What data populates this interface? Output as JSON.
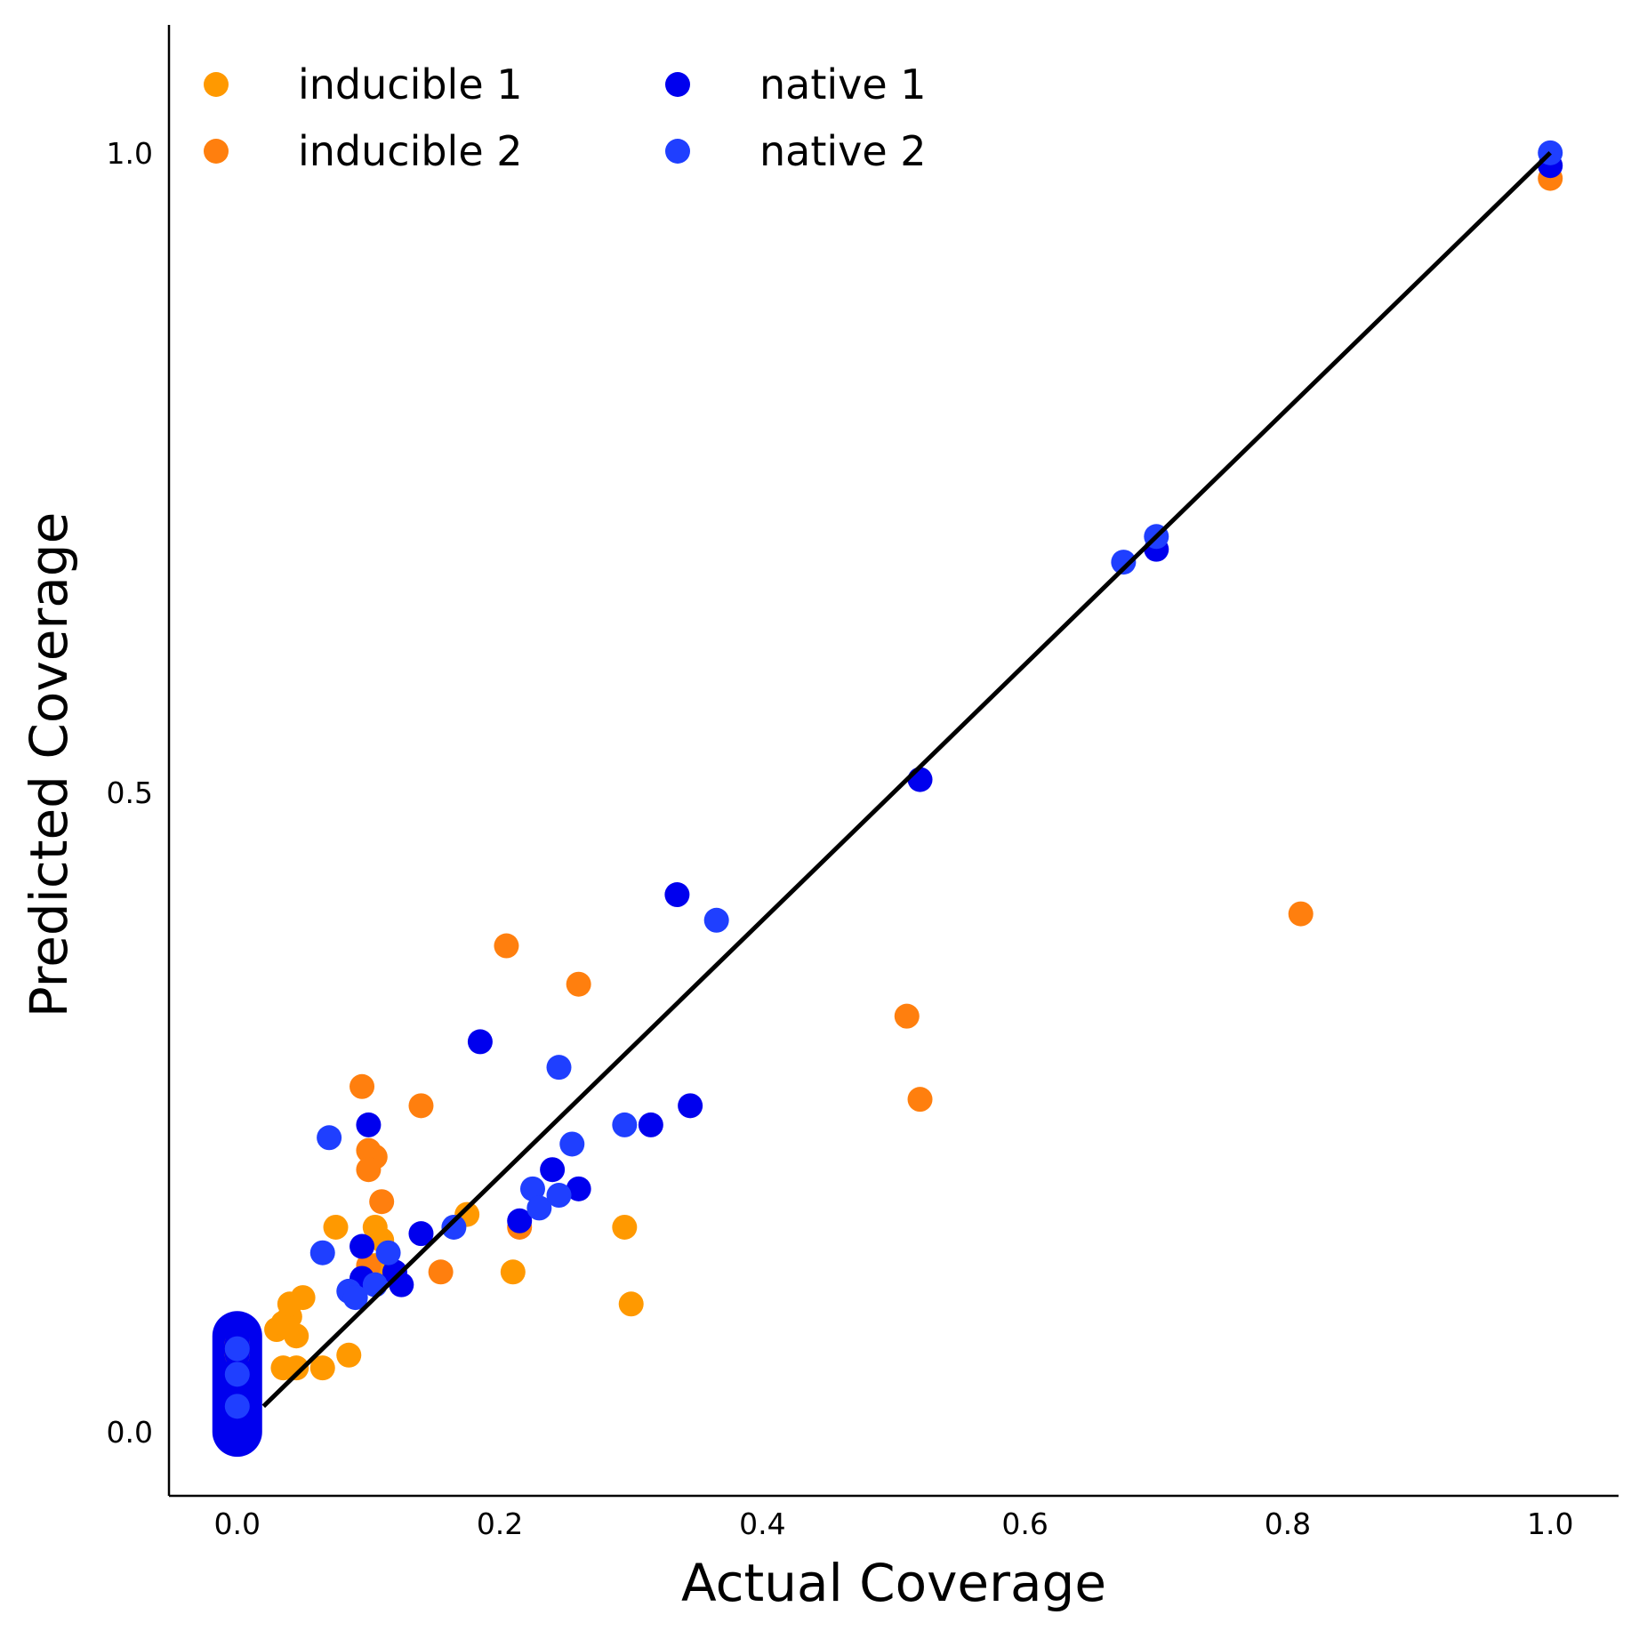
{
  "chart_data": {
    "type": "scatter",
    "title": "",
    "xlabel": "Actual Coverage",
    "ylabel": "Predicted Coverage",
    "xlim": [
      -0.052,
      1.052
    ],
    "ylim": [
      -0.05,
      1.1
    ],
    "xticks": [
      "0.0",
      "0.2",
      "0.4",
      "0.6",
      "0.8",
      "1.0"
    ],
    "xtick_values": [
      0.0,
      0.2,
      0.4,
      0.6,
      0.8,
      1.0
    ],
    "yticks": [
      "0.0",
      "0.5",
      "1.0"
    ],
    "ytick_values": [
      0.0,
      0.5,
      1.0
    ],
    "grid": false,
    "legend_position": "top-left",
    "reference_line": {
      "x": [
        0.02,
        1.0
      ],
      "y": [
        0.02,
        1.0
      ],
      "color": "#000000"
    },
    "series": [
      {
        "name": "inducible 1",
        "color": "#ff9900",
        "points": [
          [
            0.03,
            0.08
          ],
          [
            0.04,
            0.09
          ],
          [
            0.035,
            0.085
          ],
          [
            0.04,
            0.1
          ],
          [
            0.05,
            0.105
          ],
          [
            0.045,
            0.075
          ],
          [
            0.035,
            0.05
          ],
          [
            0.045,
            0.05
          ],
          [
            0.065,
            0.05
          ],
          [
            0.085,
            0.06
          ],
          [
            0.075,
            0.16
          ],
          [
            0.105,
            0.16
          ],
          [
            0.175,
            0.17
          ],
          [
            0.295,
            0.16
          ],
          [
            0.3,
            0.1
          ],
          [
            0.21,
            0.125
          ],
          [
            0.11,
            0.15
          ],
          [
            0.105,
            0.13
          ],
          [
            0.0,
            0.07
          ],
          [
            0.0,
            0.06
          ]
        ]
      },
      {
        "name": "inducible 2",
        "color": "#ff7f0e",
        "points": [
          [
            0.095,
            0.27
          ],
          [
            0.14,
            0.255
          ],
          [
            0.1,
            0.22
          ],
          [
            0.105,
            0.215
          ],
          [
            0.1,
            0.205
          ],
          [
            0.11,
            0.18
          ],
          [
            0.205,
            0.38
          ],
          [
            0.26,
            0.35
          ],
          [
            0.215,
            0.16
          ],
          [
            0.155,
            0.125
          ],
          [
            0.1,
            0.13
          ],
          [
            0.51,
            0.325
          ],
          [
            0.52,
            0.26
          ],
          [
            0.81,
            0.405
          ],
          [
            1.0,
            0.98
          ]
        ]
      },
      {
        "name": "native 1",
        "color": "#0000ee",
        "points": [
          [
            0.0,
            0.0
          ],
          [
            0.0,
            0.01
          ],
          [
            0.0,
            0.02
          ],
          [
            0.0,
            0.03
          ],
          [
            0.0,
            0.04
          ],
          [
            0.0,
            0.05
          ],
          [
            0.0,
            0.06
          ],
          [
            0.0,
            0.07
          ],
          [
            0.0,
            0.075
          ],
          [
            0.1,
            0.24
          ],
          [
            0.185,
            0.305
          ],
          [
            0.335,
            0.42
          ],
          [
            0.345,
            0.255
          ],
          [
            0.315,
            0.24
          ],
          [
            0.24,
            0.205
          ],
          [
            0.26,
            0.19
          ],
          [
            0.215,
            0.165
          ],
          [
            0.095,
            0.145
          ],
          [
            0.14,
            0.155
          ],
          [
            0.12,
            0.125
          ],
          [
            0.125,
            0.115
          ],
          [
            0.095,
            0.12
          ],
          [
            0.52,
            0.51
          ],
          [
            0.7,
            0.69
          ],
          [
            1.0,
            0.99
          ]
        ]
      },
      {
        "name": "native 2",
        "color": "#1f3fff",
        "points": [
          [
            0.0,
            0.02
          ],
          [
            0.0,
            0.045
          ],
          [
            0.0,
            0.065
          ],
          [
            0.07,
            0.23
          ],
          [
            0.065,
            0.14
          ],
          [
            0.115,
            0.14
          ],
          [
            0.165,
            0.16
          ],
          [
            0.245,
            0.285
          ],
          [
            0.255,
            0.225
          ],
          [
            0.295,
            0.24
          ],
          [
            0.365,
            0.4
          ],
          [
            0.225,
            0.19
          ],
          [
            0.23,
            0.175
          ],
          [
            0.245,
            0.185
          ],
          [
            0.105,
            0.115
          ],
          [
            0.085,
            0.11
          ],
          [
            0.09,
            0.105
          ],
          [
            0.675,
            0.68
          ],
          [
            0.7,
            0.7
          ],
          [
            1.0,
            1.0
          ]
        ]
      }
    ],
    "blob": {
      "x": 0.0,
      "y": [
        0.0,
        0.075
      ],
      "color": "#0000ee"
    }
  }
}
